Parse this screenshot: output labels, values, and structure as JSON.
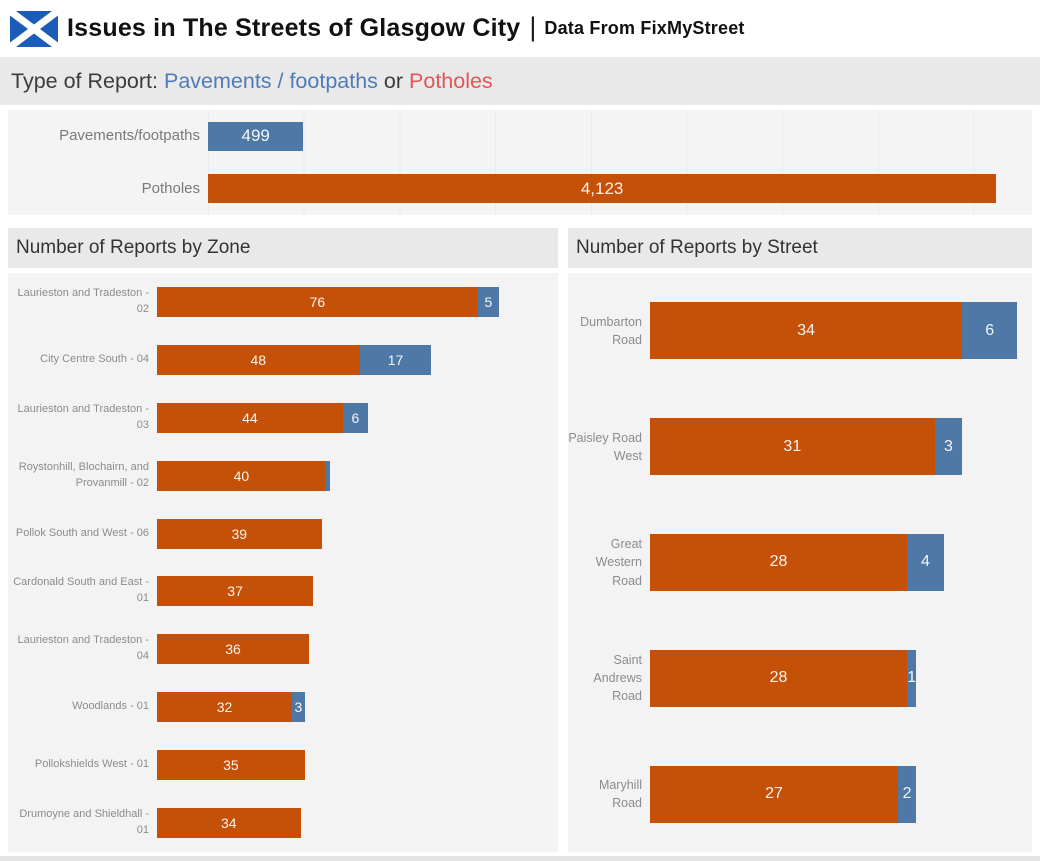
{
  "header": {
    "title": "Issues in The Streets of Glasgow City",
    "separator": "|",
    "subtitle": "Data From FixMyStreet",
    "flag_icon": "scotland-flag-icon"
  },
  "type_of_report": {
    "prefix": "Type of Report:",
    "option_pavements": "Pavements / footpaths",
    "conjunction": "or",
    "option_potholes": "Potholes",
    "pavements_text_color": "#4F7CB8",
    "potholes_text_color": "#E15759"
  },
  "colors": {
    "potholes_bar": "#C45107",
    "pavements_bar": "#4E79A7",
    "flag_blue": "#1A5CB8"
  },
  "chart_data": [
    {
      "id": "type_chart",
      "type": "bar",
      "orientation": "horizontal",
      "title": "",
      "xmax": 4310,
      "grid": true,
      "rows": [
        {
          "label": "Pavements/footpaths",
          "segments": [
            {
              "series": "pavements",
              "value": 499,
              "text": "499"
            }
          ]
        },
        {
          "label": "Potholes",
          "segments": [
            {
              "series": "potholes",
              "value": 4123,
              "text": "4,123"
            }
          ]
        }
      ]
    },
    {
      "id": "zone_chart",
      "type": "stacked-bar",
      "orientation": "horizontal",
      "title": "Number of Reports by Zone",
      "xmax": 95,
      "grid": false,
      "series_legend": [
        "potholes",
        "pavements"
      ],
      "rows": [
        {
          "label": "Laurieston and Tradeston - 02",
          "segments": [
            {
              "series": "potholes",
              "value": 76,
              "text": "76"
            },
            {
              "series": "pavements",
              "value": 5,
              "text": "5"
            }
          ]
        },
        {
          "label": "City Centre South - 04",
          "segments": [
            {
              "series": "potholes",
              "value": 48,
              "text": "48"
            },
            {
              "series": "pavements",
              "value": 17,
              "text": "17"
            }
          ]
        },
        {
          "label": "Laurieston and Tradeston - 03",
          "segments": [
            {
              "series": "potholes",
              "value": 44,
              "text": "44"
            },
            {
              "series": "pavements",
              "value": 6,
              "text": "6"
            }
          ]
        },
        {
          "label": "Roystonhill, Blochairn, and Provanmill - 02",
          "segments": [
            {
              "series": "potholes",
              "value": 40,
              "text": "40"
            },
            {
              "series": "pavements",
              "value": 1,
              "text": ""
            }
          ]
        },
        {
          "label": "Pollok South and West - 06",
          "segments": [
            {
              "series": "potholes",
              "value": 39,
              "text": "39"
            }
          ]
        },
        {
          "label": "Cardonald South and East - 01",
          "segments": [
            {
              "series": "potholes",
              "value": 37,
              "text": "37"
            }
          ]
        },
        {
          "label": "Laurieston and Tradeston - 04",
          "segments": [
            {
              "series": "potholes",
              "value": 36,
              "text": "36"
            }
          ]
        },
        {
          "label": "Woodlands - 01",
          "segments": [
            {
              "series": "potholes",
              "value": 32,
              "text": "32"
            },
            {
              "series": "pavements",
              "value": 3,
              "text": "3"
            }
          ]
        },
        {
          "label": "Pollokshields West - 01",
          "segments": [
            {
              "series": "potholes",
              "value": 35,
              "text": "35"
            }
          ]
        },
        {
          "label": "Drumoyne and Shieldhall - 01",
          "segments": [
            {
              "series": "potholes",
              "value": 34,
              "text": "34"
            }
          ]
        }
      ]
    },
    {
      "id": "street_chart",
      "type": "stacked-bar",
      "orientation": "horizontal",
      "title": "Number of Reports by Street",
      "xmax": 41.6,
      "grid": false,
      "series_legend": [
        "potholes",
        "pavements"
      ],
      "rows": [
        {
          "label": "Dumbarton Road",
          "segments": [
            {
              "series": "potholes",
              "value": 34,
              "text": "34"
            },
            {
              "series": "pavements",
              "value": 6,
              "text": "6"
            }
          ]
        },
        {
          "label": "Paisley Road West",
          "segments": [
            {
              "series": "potholes",
              "value": 31,
              "text": "31"
            },
            {
              "series": "pavements",
              "value": 3,
              "text": "3"
            }
          ]
        },
        {
          "label": "Great Western Road",
          "segments": [
            {
              "series": "potholes",
              "value": 28,
              "text": "28"
            },
            {
              "series": "pavements",
              "value": 4,
              "text": "4"
            }
          ]
        },
        {
          "label": "Saint Andrews Road",
          "segments": [
            {
              "series": "potholes",
              "value": 28,
              "text": "28"
            },
            {
              "series": "pavements",
              "value": 1,
              "text": "1"
            }
          ]
        },
        {
          "label": "Maryhill Road",
          "segments": [
            {
              "series": "potholes",
              "value": 27,
              "text": "27"
            },
            {
              "series": "pavements",
              "value": 2,
              "text": "2"
            }
          ]
        }
      ]
    }
  ]
}
